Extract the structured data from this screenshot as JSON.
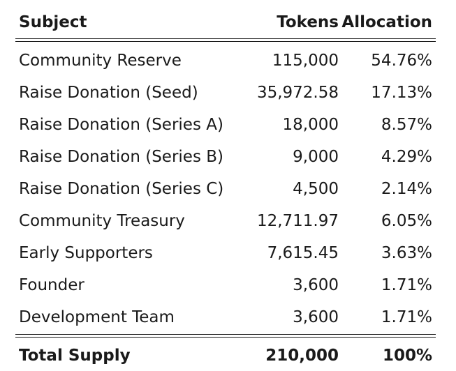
{
  "header": {
    "subject": "Subject",
    "tokens": "Tokens",
    "allocation": "Allocation"
  },
  "rows": [
    {
      "subject": "Community Reserve",
      "tokens": "115,000",
      "allocation": "54.76%"
    },
    {
      "subject": "Raise Donation (Seed)",
      "tokens": "35,972.58",
      "allocation": "17.13%"
    },
    {
      "subject": "Raise Donation (Series A)",
      "tokens": "18,000",
      "allocation": "8.57%"
    },
    {
      "subject": "Raise Donation (Series B)",
      "tokens": "9,000",
      "allocation": "4.29%"
    },
    {
      "subject": "Raise Donation (Series C)",
      "tokens": "4,500",
      "allocation": "2.14%"
    },
    {
      "subject": "Community Treasury",
      "tokens": "12,711.97",
      "allocation": "6.05%"
    },
    {
      "subject": "Early Supporters",
      "tokens": "7,615.45",
      "allocation": "3.63%"
    },
    {
      "subject": "Founder",
      "tokens": "3,600",
      "allocation": "1.71%"
    },
    {
      "subject": "Development Team",
      "tokens": "3,600",
      "allocation": "1.71%"
    }
  ],
  "total": {
    "subject": "Total Supply",
    "tokens": "210,000",
    "allocation": "100%"
  }
}
